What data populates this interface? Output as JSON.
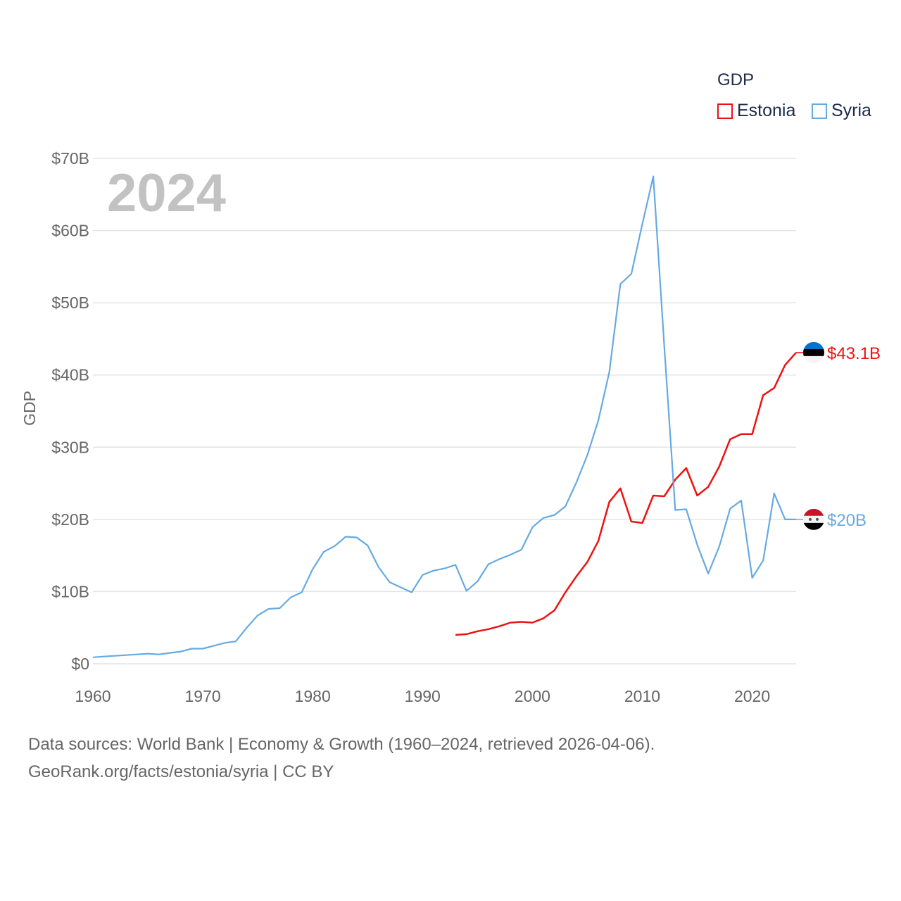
{
  "legend": {
    "title": "GDP",
    "items": [
      {
        "label": "Estonia",
        "color": "#ee1111"
      },
      {
        "label": "Syria",
        "color": "#66aae2"
      }
    ]
  },
  "chart_data": {
    "type": "line",
    "year_label": "2024",
    "ylabel": "GDP",
    "xlim": [
      1960,
      2024
    ],
    "ylim": [
      0,
      70
    ],
    "y_unit": "billion USD",
    "x_ticks": [
      "1960",
      "1970",
      "1980",
      "1990",
      "2000",
      "2010",
      "2020"
    ],
    "x_tick_values": [
      1960,
      1970,
      1980,
      1990,
      2000,
      2010,
      2020
    ],
    "y_ticks": [
      "$0",
      "$10B",
      "$20B",
      "$30B",
      "$40B",
      "$50B",
      "$60B",
      "$70B"
    ],
    "y_tick_values": [
      0,
      10,
      20,
      30,
      40,
      50,
      60,
      70
    ],
    "grid": true,
    "series": [
      {
        "name": "Estonia",
        "color": "#ee1111",
        "end_label": "$43.1B",
        "flag": "estonia-flag-icon",
        "x": [
          1993,
          1994,
          1995,
          1996,
          1997,
          1998,
          1999,
          2000,
          2001,
          2002,
          2003,
          2004,
          2005,
          2006,
          2007,
          2008,
          2009,
          2010,
          2011,
          2012,
          2013,
          2014,
          2015,
          2016,
          2017,
          2018,
          2019,
          2020,
          2021,
          2022,
          2023,
          2024
        ],
        "values": [
          4.0,
          4.1,
          4.5,
          4.8,
          5.2,
          5.7,
          5.8,
          5.7,
          6.3,
          7.4,
          9.9,
          12.1,
          14.1,
          17.0,
          22.4,
          24.3,
          19.7,
          19.5,
          23.3,
          23.2,
          25.5,
          27.1,
          23.3,
          24.5,
          27.3,
          31.1,
          31.8,
          31.8,
          37.2,
          38.2,
          41.4,
          43.1
        ]
      },
      {
        "name": "Syria",
        "color": "#66aae2",
        "end_label": "$20B",
        "flag": "syria-flag-icon",
        "x": [
          1960,
          1961,
          1962,
          1963,
          1964,
          1965,
          1966,
          1967,
          1968,
          1969,
          1970,
          1971,
          1972,
          1973,
          1974,
          1975,
          1976,
          1977,
          1978,
          1979,
          1980,
          1981,
          1982,
          1983,
          1984,
          1985,
          1986,
          1987,
          1988,
          1989,
          1990,
          1991,
          1992,
          1993,
          1994,
          1995,
          1996,
          1997,
          1998,
          1999,
          2000,
          2001,
          2002,
          2003,
          2004,
          2005,
          2006,
          2007,
          2008,
          2009,
          2010,
          2011,
          2012,
          2013,
          2014,
          2015,
          2016,
          2017,
          2018,
          2019,
          2020,
          2021,
          2022,
          2023,
          2024
        ],
        "values": [
          0.9,
          1.0,
          1.1,
          1.2,
          1.3,
          1.4,
          1.3,
          1.5,
          1.7,
          2.1,
          2.1,
          2.5,
          2.9,
          3.1,
          5.0,
          6.7,
          7.6,
          7.7,
          9.2,
          9.9,
          13.1,
          15.5,
          16.3,
          17.6,
          17.5,
          16.4,
          13.4,
          11.3,
          10.6,
          9.9,
          12.3,
          12.9,
          13.2,
          13.7,
          10.1,
          11.4,
          13.8,
          14.5,
          15.1,
          15.8,
          18.9,
          20.2,
          20.6,
          21.8,
          25.1,
          28.9,
          33.7,
          40.4,
          52.6,
          54.0,
          60.9,
          67.5,
          44.0,
          21.3,
          21.4,
          16.5,
          12.5,
          16.2,
          21.5,
          22.6,
          11.9,
          14.3,
          23.6,
          20.0,
          20.0
        ]
      }
    ]
  },
  "footer": {
    "line1": "Data sources: World Bank | Economy & Growth (1960–2024, retrieved 2026-04-06).",
    "line2": "GeoRank.org/facts/estonia/syria | CC BY"
  }
}
